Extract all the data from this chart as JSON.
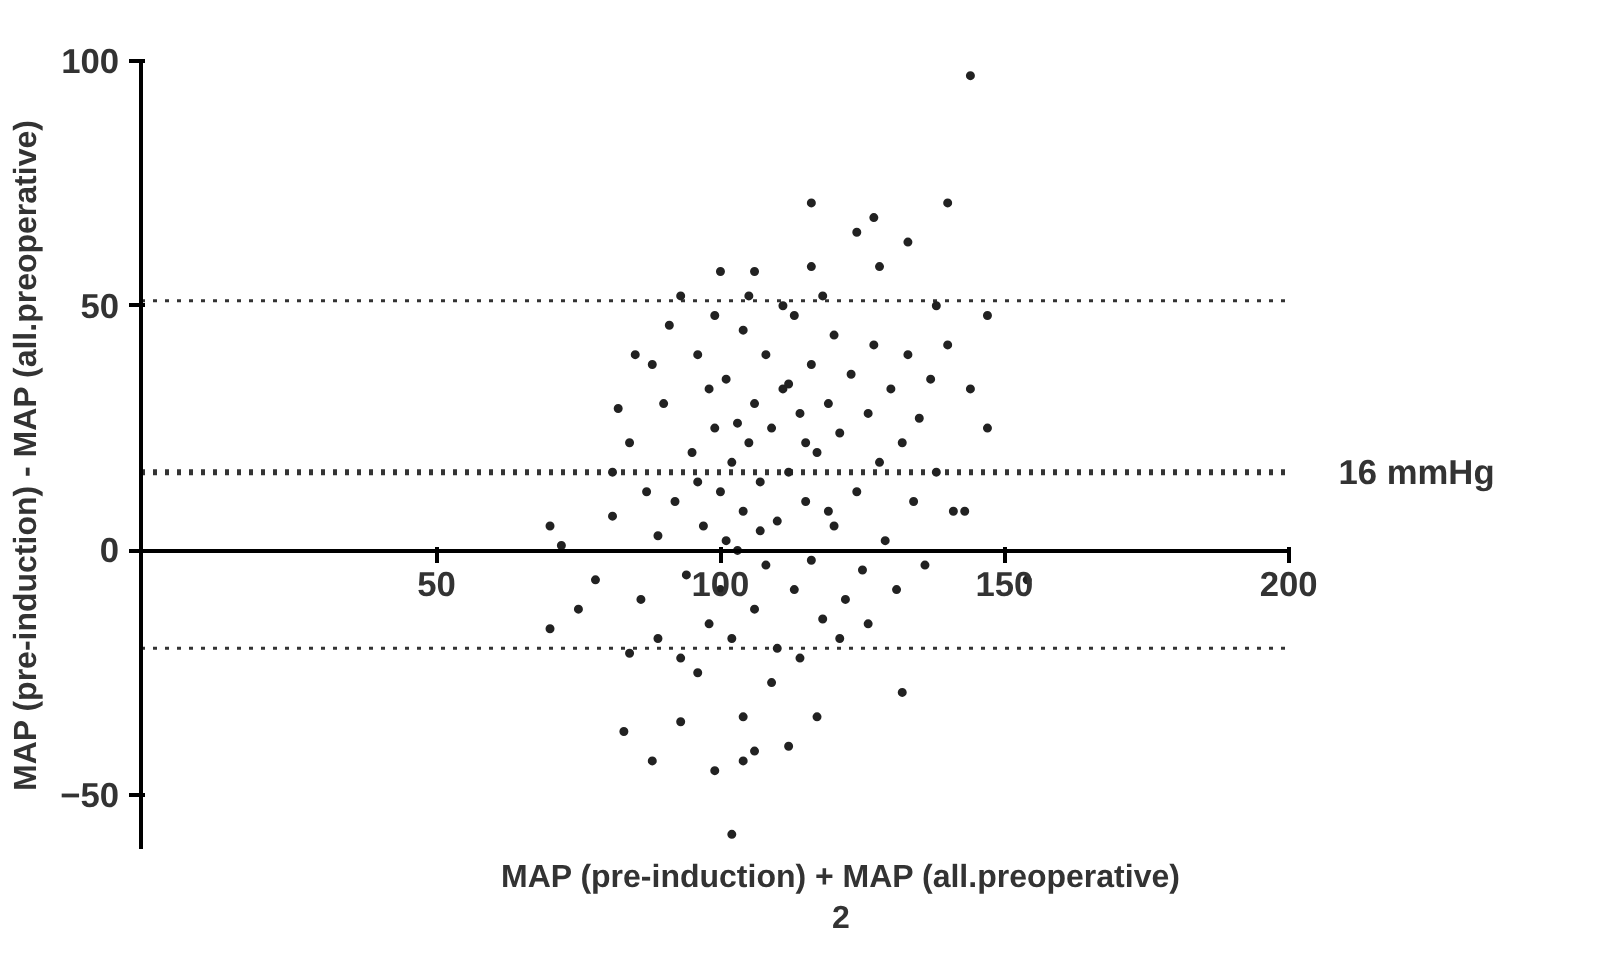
{
  "chart_data": {
    "type": "scatter",
    "xlabel": "MAP (pre-induction) + MAP (all.preoperative)\n2",
    "ylabel": "MAP (pre-induction) - MAP (all.preoperative)",
    "xlim": [
      -2,
      200
    ],
    "ylim": [
      -61,
      100
    ],
    "xticks": [
      50,
      100,
      150,
      200
    ],
    "yticks": [
      -50,
      0,
      50,
      100
    ],
    "grid": false,
    "marker": "circle",
    "series": [
      {
        "color": "#222222",
        "x": [
          144,
          116,
          140,
          127,
          124,
          133,
          128,
          100,
          106,
          116,
          93,
          147,
          138,
          85,
          144,
          147,
          143,
          70,
          154,
          132,
          83,
          88,
          93,
          99,
          102,
          104,
          106,
          112,
          117,
          104,
          70,
          75,
          84,
          78,
          72,
          82,
          84,
          81,
          81,
          89,
          90,
          92,
          94,
          95,
          96,
          97,
          98,
          99,
          100,
          100,
          101,
          102,
          103,
          104,
          104,
          105,
          106,
          106,
          107,
          108,
          108,
          109,
          110,
          110,
          111,
          112,
          113,
          113,
          114,
          115,
          116,
          116,
          117,
          118,
          119,
          120,
          120,
          121,
          122,
          123,
          124,
          125,
          126,
          127,
          128,
          129,
          130,
          131,
          132,
          133,
          134,
          135,
          136,
          137,
          138,
          140,
          141,
          87,
          86,
          88,
          89,
          91,
          93,
          96,
          99,
          102,
          105,
          109,
          111,
          114,
          118,
          121,
          126,
          96,
          103,
          107,
          112,
          115,
          119,
          101,
          98
        ],
        "values": [
          97,
          71,
          71,
          68,
          65,
          63,
          58,
          57,
          57,
          58,
          52,
          48,
          50,
          40,
          33,
          25,
          8,
          5,
          -6,
          -29,
          -37,
          -43,
          -35,
          -45,
          -58,
          -43,
          -41,
          -40,
          -34,
          -34,
          -16,
          -12,
          -21,
          -6,
          1,
          29,
          22,
          16,
          7,
          3,
          30,
          10,
          -5,
          20,
          40,
          5,
          -15,
          25,
          12,
          -8,
          35,
          18,
          0,
          45,
          8,
          22,
          -12,
          30,
          14,
          -3,
          40,
          25,
          6,
          -20,
          33,
          16,
          -8,
          48,
          28,
          10,
          38,
          -2,
          20,
          -14,
          30,
          44,
          5,
          24,
          -10,
          36,
          12,
          -4,
          28,
          42,
          18,
          2,
          33,
          -8,
          22,
          40,
          10,
          27,
          -3,
          35,
          16,
          42,
          8,
          12,
          -10,
          38,
          -18,
          46,
          -22,
          -25,
          48,
          -18,
          52,
          -27,
          50,
          -22,
          52,
          -18,
          -15,
          14,
          26,
          4,
          34,
          22,
          8,
          2,
          33
        ]
      }
    ],
    "ref_lines": [
      {
        "axis": "y",
        "value": 51,
        "label": null,
        "line_style": "dotted"
      },
      {
        "axis": "y",
        "value": 16,
        "label": "16 mmHg",
        "line_style": "dotted"
      },
      {
        "axis": "y",
        "value": -20,
        "label": null,
        "line_style": "dotted"
      }
    ]
  }
}
